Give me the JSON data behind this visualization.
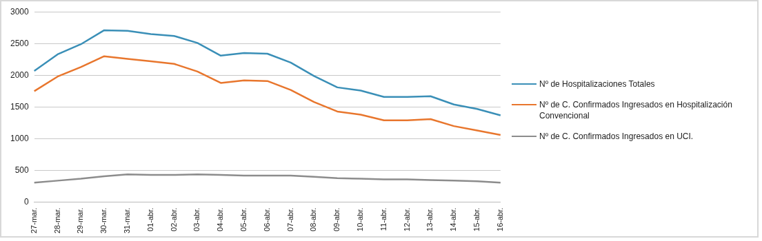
{
  "chart_data": {
    "type": "line",
    "categories": [
      "27-mar.",
      "28-mar.",
      "29-mar.",
      "30-mar.",
      "31-mar.",
      "01-abr.",
      "02-abr.",
      "03-abr.",
      "04-abr.",
      "05-abr.",
      "06-abr.",
      "07-abr.",
      "08-abr.",
      "09-abr.",
      "10-abr.",
      "11-abr.",
      "12-abr.",
      "13-abr.",
      "14-abr.",
      "15-abr.",
      "16-abr."
    ],
    "series": [
      {
        "name": "Nº de Hospitalizaciones Totales",
        "color": "#3a8fb7",
        "values": [
          2070,
          2330,
          2490,
          2710,
          2700,
          2650,
          2620,
          2510,
          2310,
          2350,
          2340,
          2200,
          1990,
          1810,
          1760,
          1660,
          1660,
          1670,
          1540,
          1470,
          1370
        ]
      },
      {
        "name": "Nº de C. Confirmados Ingresados en Hospitalización Convencional",
        "color": "#e8762d",
        "values": [
          1750,
          1980,
          2130,
          2300,
          2260,
          2220,
          2180,
          2060,
          1880,
          1920,
          1910,
          1770,
          1580,
          1430,
          1380,
          1290,
          1290,
          1310,
          1200,
          1130,
          1060
        ]
      },
      {
        "name": "Nº de C. Confirmados Ingresados en UCI.",
        "color": "#8c8c8c",
        "values": [
          310,
          340,
          370,
          410,
          440,
          430,
          430,
          440,
          430,
          420,
          420,
          420,
          400,
          380,
          370,
          360,
          360,
          350,
          340,
          330,
          310
        ]
      }
    ],
    "ylim": [
      0,
      3000
    ],
    "yticks": [
      0,
      500,
      1000,
      1500,
      2000,
      2500,
      3000
    ],
    "grid": "y",
    "legend": "right",
    "marker": "none",
    "line_style": "solid"
  }
}
